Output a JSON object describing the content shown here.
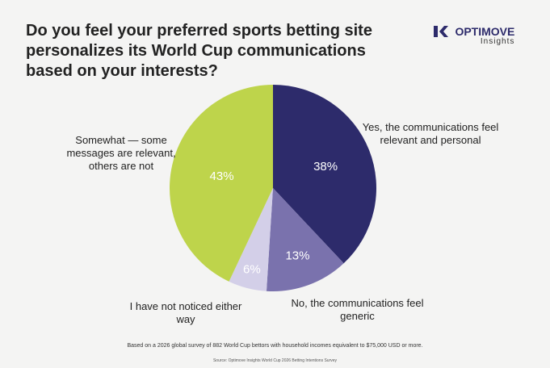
{
  "chart_data": {
    "type": "pie",
    "title": "Do you feel your preferred sports betting site personalizes its World Cup communications based on your interests?",
    "brand": "OPTIMOVE",
    "brand_sub": "Insights",
    "categories": [
      "Yes, the communications feel relevant and personal",
      "No, the communications feel generic",
      "I have not noticed either way",
      "Somewhat — some messages are relevant, others are not"
    ],
    "values": [
      38,
      13,
      6,
      43
    ],
    "value_labels": [
      "38%",
      "13%",
      "6%",
      "43%"
    ],
    "colors": [
      "#2d2b6b",
      "#7a72ad",
      "#d3cfe8",
      "#bed44b"
    ],
    "footnote": "Based on a 2026 global survey of 882 World Cup bettors with household incomes equivalent to $75,000 USD or more.",
    "source": "Source: Optimove Insights World Cup 2026 Betting Intentions Survey"
  }
}
